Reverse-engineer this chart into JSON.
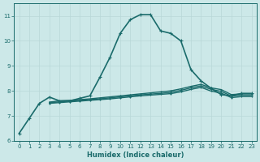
{
  "xlabel": "Humidex (Indice chaleur)",
  "background_color": "#cce8e8",
  "line_color": "#1a6b6b",
  "xlim": [
    -0.5,
    23.5
  ],
  "ylim": [
    6,
    11.5
  ],
  "xticks": [
    0,
    1,
    2,
    3,
    4,
    5,
    6,
    7,
    8,
    9,
    10,
    11,
    12,
    13,
    14,
    15,
    16,
    17,
    18,
    19,
    20,
    21,
    22,
    23
  ],
  "yticks": [
    6,
    7,
    8,
    9,
    10,
    11
  ],
  "series": [
    {
      "x": [
        0,
        1,
        2,
        3,
        4,
        5,
        6,
        7,
        8,
        9,
        10,
        11,
        12,
        13,
        14,
        15,
        16,
        17,
        18,
        19,
        20,
        21,
        22,
        23
      ],
      "y": [
        6.3,
        6.9,
        7.5,
        7.75,
        7.6,
        7.6,
        7.7,
        7.8,
        8.55,
        9.35,
        10.3,
        10.85,
        11.05,
        11.05,
        10.4,
        10.3,
        10.0,
        8.85,
        8.4,
        8.1,
        7.85,
        7.8,
        7.9,
        7.9
      ],
      "lw": 1.2
    },
    {
      "x": [
        3,
        4,
        5,
        6,
        7,
        8,
        9,
        10,
        11,
        12,
        13,
        14,
        15,
        16,
        17,
        18,
        19,
        20,
        21,
        22,
        23
      ],
      "y": [
        7.55,
        7.6,
        7.62,
        7.65,
        7.68,
        7.72,
        7.76,
        7.8,
        7.84,
        7.88,
        7.92,
        7.96,
        8.0,
        8.08,
        8.18,
        8.26,
        8.12,
        8.05,
        7.85,
        7.88,
        7.88
      ],
      "lw": 1.0
    },
    {
      "x": [
        3,
        4,
        5,
        6,
        7,
        8,
        9,
        10,
        11,
        12,
        13,
        14,
        15,
        16,
        17,
        18,
        19,
        20,
        21,
        22,
        23
      ],
      "y": [
        7.52,
        7.56,
        7.59,
        7.62,
        7.65,
        7.68,
        7.72,
        7.76,
        7.8,
        7.84,
        7.87,
        7.9,
        7.94,
        8.02,
        8.12,
        8.2,
        8.06,
        7.98,
        7.79,
        7.83,
        7.83
      ],
      "lw": 1.0
    },
    {
      "x": [
        3,
        4,
        5,
        6,
        7,
        8,
        9,
        10,
        11,
        12,
        13,
        14,
        15,
        16,
        17,
        18,
        19,
        20,
        21,
        22,
        23
      ],
      "y": [
        7.5,
        7.53,
        7.56,
        7.59,
        7.62,
        7.65,
        7.68,
        7.72,
        7.76,
        7.8,
        7.83,
        7.86,
        7.89,
        7.96,
        8.06,
        8.14,
        7.99,
        7.91,
        7.73,
        7.77,
        7.77
      ],
      "lw": 1.0
    }
  ]
}
